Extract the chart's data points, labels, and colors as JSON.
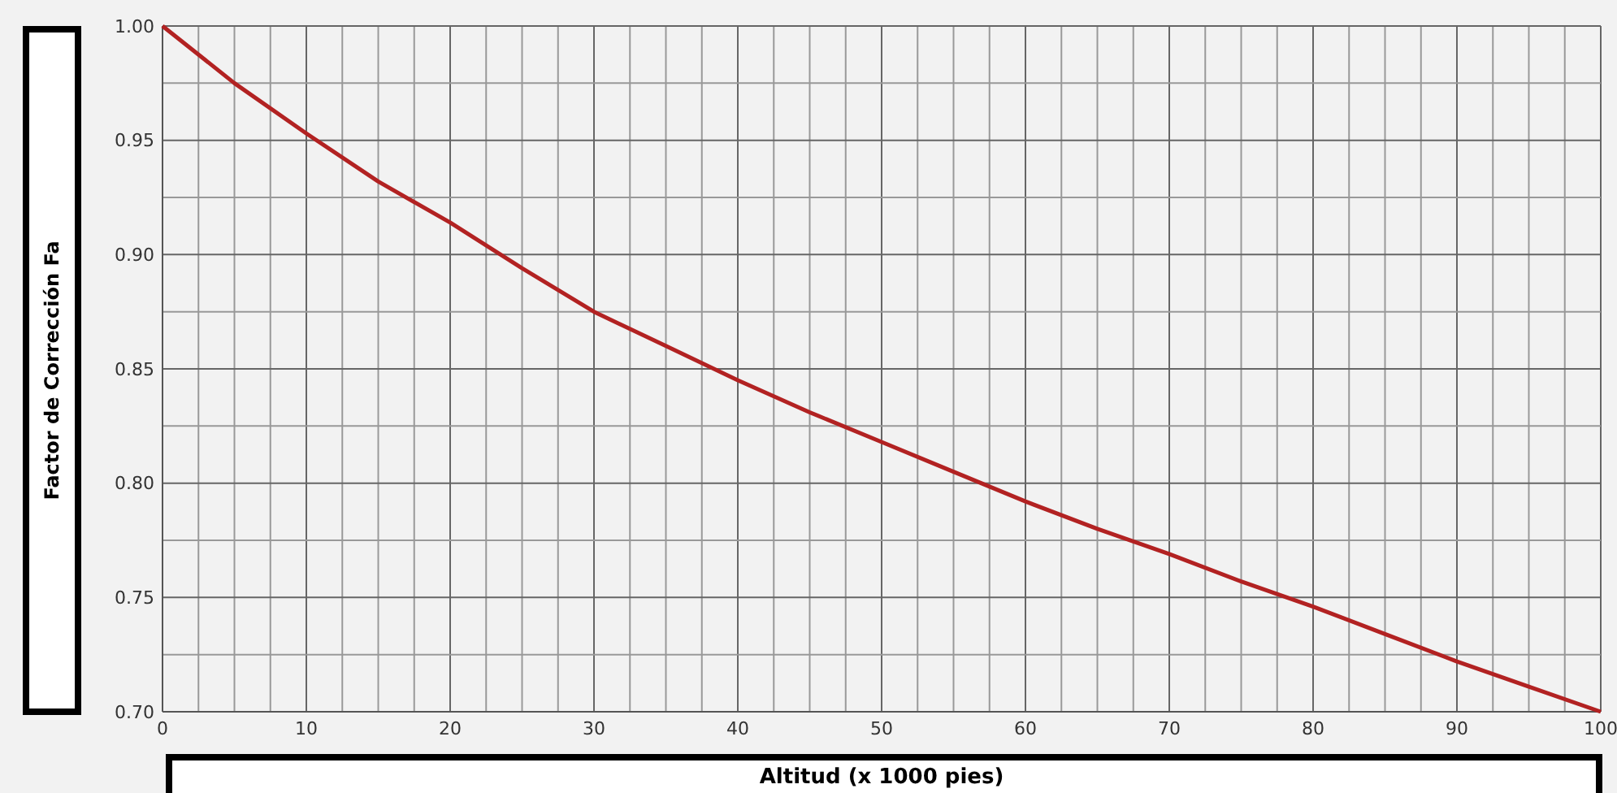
{
  "chart_data": {
    "type": "line",
    "xlabel": "Altitud (x 1000 pies)",
    "ylabel": "Factor de Corrección Fa",
    "x": [
      0,
      5,
      10,
      15,
      20,
      25,
      30,
      35,
      40,
      45,
      50,
      55,
      60,
      65,
      70,
      75,
      80,
      85,
      90,
      95,
      100
    ],
    "series": [
      {
        "color": "#b22222",
        "values": [
          1.0,
          0.975,
          0.953,
          0.932,
          0.914,
          0.894,
          0.875,
          0.86,
          0.845,
          0.831,
          0.818,
          0.805,
          0.792,
          0.78,
          0.769,
          0.757,
          0.746,
          0.734,
          0.722,
          0.711,
          0.7
        ]
      }
    ],
    "xlim": [
      0,
      100
    ],
    "xticks": [
      0,
      {
        "value": 2.5,
        "label": null
      },
      {
        "value": 5,
        "label": null
      },
      {
        "value": 7.5,
        "label": null
      },
      10,
      {
        "value": 12.5,
        "label": null
      },
      {
        "value": 15,
        "label": null
      },
      {
        "value": 17.5,
        "label": null
      },
      20,
      {
        "value": 22.5,
        "label": null
      },
      {
        "value": 25,
        "label": null
      },
      {
        "value": 27.5,
        "label": null
      },
      30,
      {
        "value": 32.5,
        "label": null
      },
      {
        "value": 35,
        "label": null
      },
      {
        "value": 37.5,
        "label": null
      },
      40,
      {
        "value": 42.5,
        "label": null
      },
      {
        "value": 45,
        "label": null
      },
      {
        "value": 47.5,
        "label": null
      },
      50,
      {
        "value": 52.5,
        "label": null
      },
      {
        "value": 55,
        "label": null
      },
      {
        "value": 57.5,
        "label": null
      },
      60,
      {
        "value": 62.5,
        "label": null
      },
      {
        "value": 65,
        "label": null
      },
      {
        "value": 67.5,
        "label": null
      },
      70,
      {
        "value": 72.5,
        "label": null
      },
      {
        "value": 75,
        "label": null
      },
      {
        "value": 77.5,
        "label": null
      },
      80,
      {
        "value": 82.5,
        "label": null
      },
      {
        "value": 85,
        "label": null
      },
      {
        "value": 87.5,
        "label": null
      },
      90,
      {
        "value": 92.5,
        "label": null
      },
      {
        "value": 95,
        "label": null
      },
      {
        "value": 97.5,
        "label": null
      },
      100
    ],
    "ylim": [
      0.7,
      1.0
    ],
    "yticks": [
      {
        "value": 0.7,
        "label": "0.70"
      },
      {
        "value": 0.725,
        "label": null
      },
      {
        "value": 0.75,
        "label": "0.75"
      },
      {
        "value": 0.775,
        "label": null
      },
      {
        "value": 0.8,
        "label": "0.80"
      },
      {
        "value": 0.825,
        "label": null
      },
      {
        "value": 0.85,
        "label": "0.85"
      },
      {
        "value": 0.875,
        "label": null
      },
      {
        "value": 0.9,
        "label": "0.90"
      },
      {
        "value": 0.925,
        "label": null
      },
      {
        "value": 0.95,
        "label": "0.95"
      },
      {
        "value": 0.975,
        "label": null
      },
      {
        "value": 1.0,
        "label": "1.00"
      }
    ],
    "grid": true,
    "marker": "none",
    "line_style": "solid"
  }
}
